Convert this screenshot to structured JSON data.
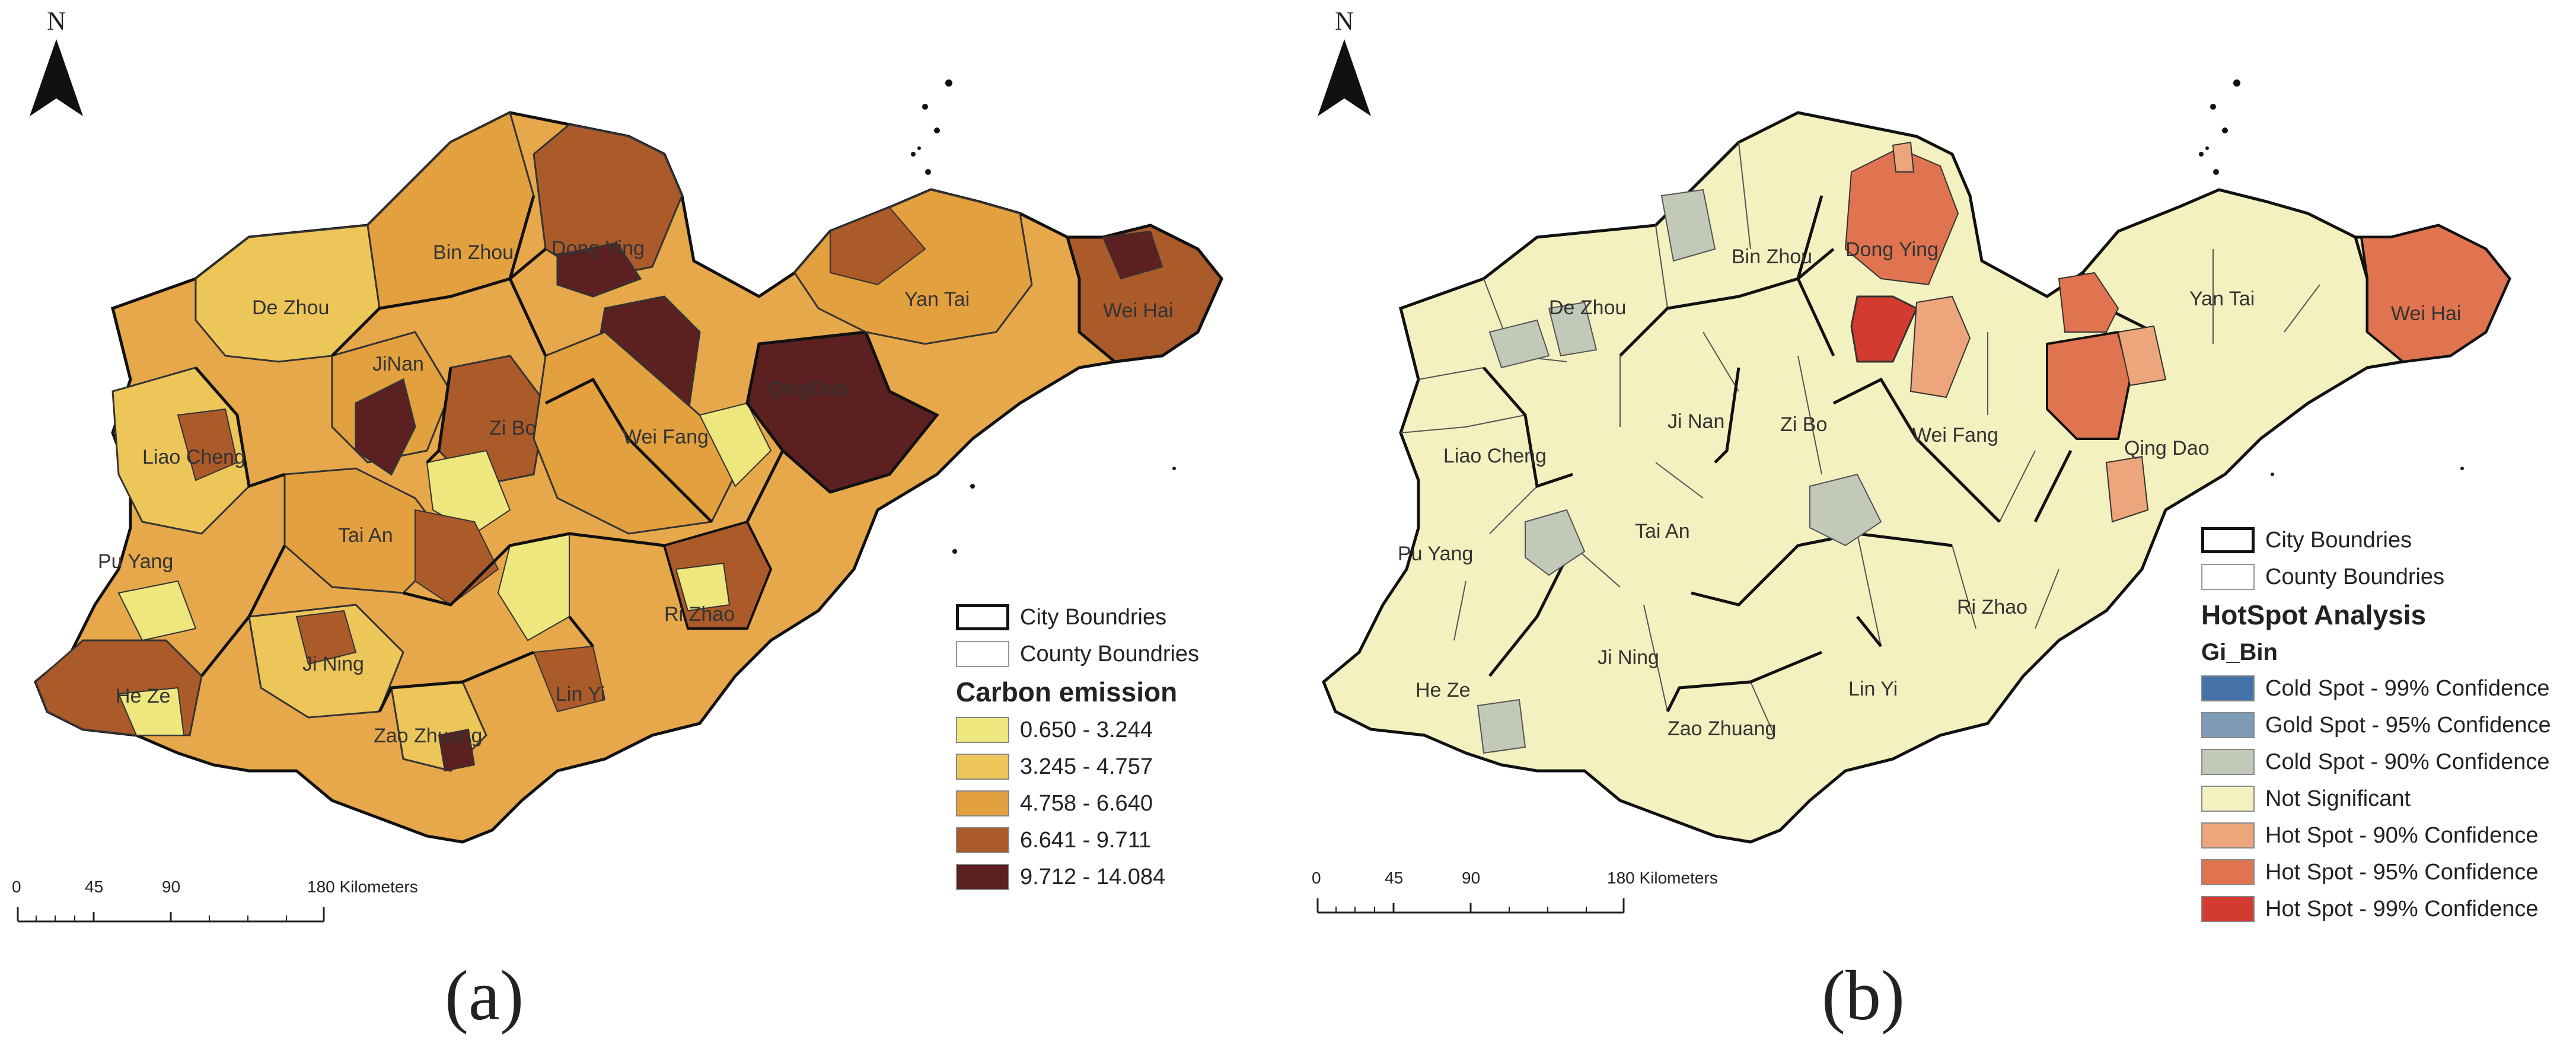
{
  "panel_a": {
    "letter": "(a)",
    "north_label": "N",
    "scale": {
      "ticks": [
        "0",
        "45",
        "90",
        "180 Kilometers"
      ]
    },
    "places": [
      "Bin Zhou",
      "Dong Ying",
      "De Zhou",
      "Yan Tai",
      "Wei Hai",
      "JiNan",
      "QingDao",
      "Zi Bo",
      "Wei Fang",
      "Liao Cheng",
      "Tai An",
      "Pu Yang",
      "Ri Zhao",
      "Ji Ning",
      "He Ze",
      "Lin Yi",
      "Zao Zhuang"
    ],
    "legend": {
      "city_boundaries": "City Boundries",
      "county_boundaries": "County Boundries",
      "title": "Carbon emission",
      "classes": [
        {
          "label": "0.650 - 3.244",
          "color": "#ede77e"
        },
        {
          "label": "3.245 - 4.757",
          "color": "#edc65a"
        },
        {
          "label": "4.758 - 6.640",
          "color": "#e3a03e"
        },
        {
          "label": "6.641 - 9.711",
          "color": "#ab5a2a"
        },
        {
          "label": "9.712 - 14.084",
          "color": "#5c2020"
        }
      ]
    }
  },
  "panel_b": {
    "letter": "(b)",
    "north_label": "N",
    "scale": {
      "ticks": [
        "0",
        "45",
        "90",
        "180 Kilometers"
      ]
    },
    "places": [
      "Bin Zhou",
      "Dong Ying",
      "De Zhou",
      "Yan Tai",
      "Wei Hai",
      "Ji Nan",
      "Zi Bo",
      "Wei Fang",
      "Qing Dao",
      "Liao Cheng",
      "Tai An",
      "Pu Yang",
      "Ri Zhao",
      "Ji Ning",
      "He Ze",
      "Lin Yi",
      "Zao Zhuang"
    ],
    "legend": {
      "city_boundaries": "City Boundries",
      "county_boundaries": "County Boundries",
      "title": "HotSpot Analysis",
      "subtitle": "Gi_Bin",
      "classes": [
        {
          "label": "Cold Spot - 99% Confidence",
          "color": "#4472a8"
        },
        {
          "label": "Gold Spot - 95% Confidence",
          "color": "#7e9cb8"
        },
        {
          "label": "Cold Spot - 90% Confidence",
          "color": "#c3c9b8"
        },
        {
          "label": "Not Significant",
          "color": "#f4f1c0"
        },
        {
          "label": "Hot Spot - 90% Confidence",
          "color": "#eda67c"
        },
        {
          "label": "Hot Spot - 95% Confidence",
          "color": "#e07450"
        },
        {
          "label": "Hot Spot - 99% Confidence",
          "color": "#d33a30"
        }
      ]
    }
  }
}
